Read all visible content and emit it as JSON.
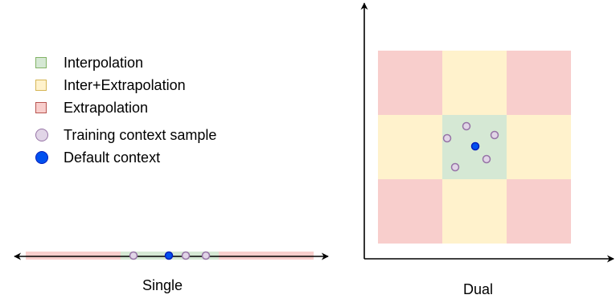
{
  "legend": {
    "interpolation": "Interpolation",
    "inter_extrapolation": "Inter+Extrapolation",
    "extrapolation": "Extrapolation",
    "training_sample": "Training context sample",
    "default_context": "Default context"
  },
  "captions": {
    "single": "Single",
    "dual": "Dual"
  },
  "colors": {
    "interpolation_fill": "#d5e8d4",
    "interpolation_stroke": "#82b366",
    "inter_extrapolation_fill": "#fff2cc",
    "inter_extrapolation_stroke": "#d6b656",
    "extrapolation_fill": "#f8cecc",
    "extrapolation_stroke": "#b85450",
    "training_fill": "#e1d5e7",
    "training_stroke": "#9673a6",
    "default_fill": "#0050ef",
    "default_stroke": "#001dbc"
  }
}
